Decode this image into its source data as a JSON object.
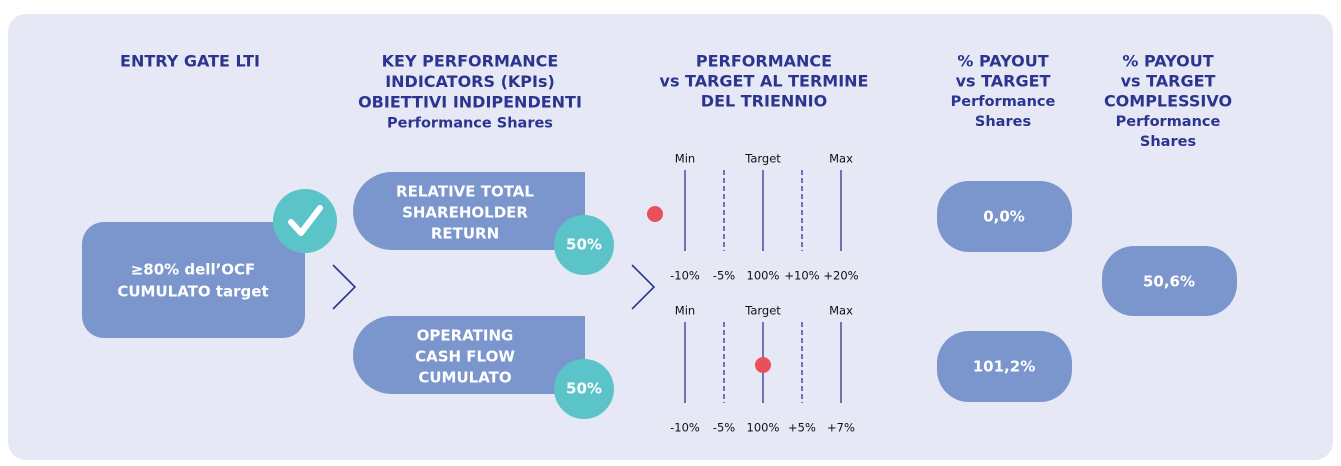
{
  "headers": {
    "entry_gate": [
      "ENTRY GATE LTI"
    ],
    "kpi": [
      "KEY PERFORMANCE",
      "INDICATORS (KPIs)",
      "OBIETTIVI INDIPENDENTI",
      "Performance Shares"
    ],
    "performance": [
      "PERFORMANCE",
      "vs TARGET AL TERMINE",
      "DEL TRIENNIO"
    ],
    "payout": [
      "% PAYOUT",
      "vs TARGET",
      "Performance",
      "Shares"
    ],
    "total_payout": [
      "% PAYOUT",
      "vs TARGET",
      "COMPLESSIVO",
      "Performance",
      "Shares"
    ]
  },
  "entry_gate": {
    "lines": [
      "≥80% dell’OCF",
      "CUMULATO target"
    ]
  },
  "kpis": [
    {
      "lines": [
        "RELATIVE TOTAL",
        "SHAREHOLDER",
        "RETURN"
      ],
      "weight": "50%",
      "scale": {
        "labels": [
          "Min",
          "Target",
          "Max"
        ],
        "ticks": [
          "-10%",
          "-5%",
          "100%",
          "+10%",
          "+20%"
        ]
      },
      "payout": "0,0%"
    },
    {
      "lines": [
        "OPERATING",
        "CASH FLOW",
        "CUMULATO"
      ],
      "weight": "50%",
      "scale": {
        "labels": [
          "Min",
          "Target",
          "Max"
        ],
        "ticks": [
          "-10%",
          "-5%",
          "100%",
          "+5%",
          "+7%"
        ]
      },
      "payout": "101,2%"
    }
  ],
  "total_payout": "50,6%"
}
